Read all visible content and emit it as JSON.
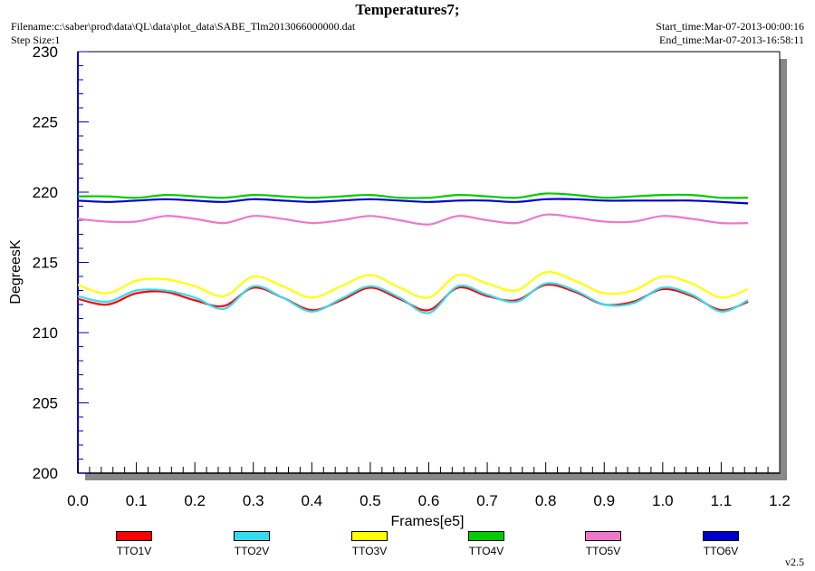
{
  "header": {
    "filename": "Filename:c:\\saber\\prod\\data\\QL\\data\\plot_data\\SABE_Tlm2013066000000.dat",
    "step_size": "Step Size:1",
    "start_time": "Start_time:Mar-07-2013-00:00:16",
    "end_time": "End_time:Mar-07-2013-16:58:11",
    "version": "v2.5"
  },
  "chart_data": {
    "type": "line",
    "title": "Temperatures7;",
    "xlabel": "Frames[e5]",
    "ylabel": "DegreesK",
    "xlim": [
      0,
      1.2
    ],
    "ylim": [
      200,
      230
    ],
    "x_ticks": [
      "0.0",
      "0.1",
      "0.2",
      "0.3",
      "0.4",
      "0.5",
      "0.6",
      "0.7",
      "0.8",
      "0.9",
      "1.0",
      "1.1",
      "1.2"
    ],
    "y_ticks": [
      "200",
      "205",
      "210",
      "215",
      "220",
      "225",
      "230"
    ],
    "grid": false,
    "legend_position": "bottom",
    "x": [
      0.0,
      0.05,
      0.1,
      0.15,
      0.2,
      0.25,
      0.3,
      0.35,
      0.4,
      0.45,
      0.5,
      0.55,
      0.6,
      0.65,
      0.7,
      0.75,
      0.8,
      0.85,
      0.9,
      0.95,
      1.0,
      1.05,
      1.1,
      1.146
    ],
    "series": [
      {
        "name": "TTO1V",
        "color": "#ff0000",
        "values": [
          212.4,
          212.0,
          212.8,
          212.9,
          212.3,
          211.9,
          213.2,
          212.5,
          211.6,
          212.3,
          213.2,
          212.4,
          211.6,
          213.2,
          212.6,
          212.3,
          213.4,
          212.9,
          212.0,
          212.2,
          213.1,
          212.6,
          211.6,
          212.2
        ]
      },
      {
        "name": "TTO2V",
        "color": "#33ddee",
        "values": [
          212.6,
          212.2,
          213.0,
          213.0,
          212.5,
          211.7,
          213.3,
          212.5,
          211.5,
          212.4,
          213.3,
          212.5,
          211.4,
          213.3,
          212.7,
          212.2,
          213.5,
          213.0,
          212.0,
          212.1,
          213.2,
          212.7,
          211.5,
          212.3
        ]
      },
      {
        "name": "TTO3V",
        "color": "#ffff00",
        "values": [
          213.4,
          212.8,
          213.7,
          213.8,
          213.3,
          212.6,
          214.0,
          213.3,
          212.5,
          213.3,
          214.1,
          213.2,
          212.5,
          214.1,
          213.5,
          213.0,
          214.3,
          213.7,
          212.8,
          213.0,
          214.0,
          213.5,
          212.5,
          213.1
        ]
      },
      {
        "name": "TTO4V",
        "color": "#00cc00",
        "values": [
          219.7,
          219.7,
          219.6,
          219.8,
          219.7,
          219.6,
          219.8,
          219.7,
          219.6,
          219.7,
          219.8,
          219.6,
          219.6,
          219.8,
          219.7,
          219.6,
          219.9,
          219.8,
          219.6,
          219.7,
          219.8,
          219.8,
          219.6,
          219.6
        ]
      },
      {
        "name": "TTO5V",
        "color": "#ee77cc",
        "values": [
          218.1,
          217.9,
          217.9,
          218.3,
          218.1,
          217.8,
          218.3,
          218.1,
          217.8,
          218.0,
          218.3,
          218.0,
          217.7,
          218.3,
          218.0,
          217.8,
          218.4,
          218.2,
          217.9,
          217.9,
          218.3,
          218.1,
          217.8,
          217.8
        ]
      },
      {
        "name": "TTO6V",
        "color": "#0000cc",
        "values": [
          219.4,
          219.3,
          219.4,
          219.5,
          219.4,
          219.3,
          219.5,
          219.4,
          219.3,
          219.4,
          219.5,
          219.4,
          219.3,
          219.4,
          219.4,
          219.3,
          219.5,
          219.5,
          219.4,
          219.4,
          219.4,
          219.4,
          219.3,
          219.2
        ]
      }
    ]
  }
}
